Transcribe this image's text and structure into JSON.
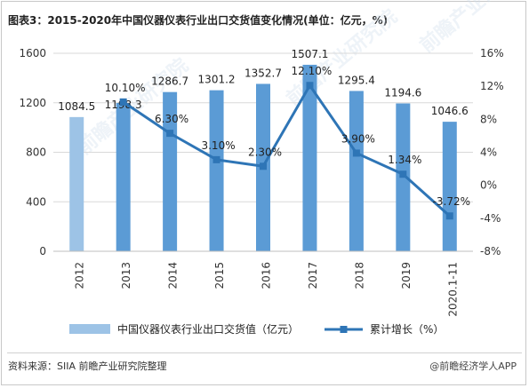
{
  "title": "图表3：2015-2020年中国仪器仪表行业出口交货值变化情况(单位：亿元，%)",
  "source": "资料来源：SIIA 前瞻产业研究院整理",
  "brand": "@前瞻经济学人APP",
  "watermark": "前瞻产业研究院",
  "colors": {
    "bar": "#5b9bd5",
    "bar_light": "#9dc3e6",
    "line": "#2e75b6"
  },
  "chart_data": {
    "type": "bar",
    "categories": [
      "2012",
      "2013",
      "2014",
      "2015",
      "2016",
      "2017",
      "2018",
      "2019",
      "2020.1-11"
    ],
    "series": [
      {
        "name": "中国仪器仪表行业出口交货值（亿元）",
        "type": "bar",
        "axis": "left",
        "values": [
          1084.5,
          1198.3,
          1286.7,
          1301.2,
          1352.7,
          1507.1,
          1295.4,
          1194.6,
          1046.6
        ],
        "labels": [
          "1084.5",
          "1198.3",
          "1286.7",
          "1301.2",
          "1352.7",
          "1507.1",
          "1295.4",
          "1194.6",
          "1046.6"
        ]
      },
      {
        "name": "累计增长（%）",
        "type": "line",
        "axis": "right",
        "values": [
          null,
          10.1,
          6.3,
          3.1,
          2.3,
          12.1,
          3.9,
          1.34,
          -3.72
        ],
        "labels": [
          "",
          "10.10%",
          "6.30%",
          "3.10%",
          "2.30%",
          "12.10%",
          "3.90%",
          "1.34%",
          "-3.72%"
        ]
      }
    ],
    "left_axis": {
      "ylim": [
        0,
        1600
      ],
      "ticks": [
        0,
        400,
        800,
        1200,
        1600
      ],
      "tick_labels": [
        "0",
        "400",
        "800",
        "1200",
        "1600"
      ]
    },
    "right_axis": {
      "ylim": [
        -8,
        16
      ],
      "ticks": [
        -8,
        -4,
        0,
        4,
        8,
        12,
        16
      ],
      "tick_labels": [
        "-8%",
        "-4%",
        "0%",
        "4%",
        "8%",
        "12%",
        "16%"
      ]
    },
    "grid": true,
    "legend_position": "bottom"
  }
}
